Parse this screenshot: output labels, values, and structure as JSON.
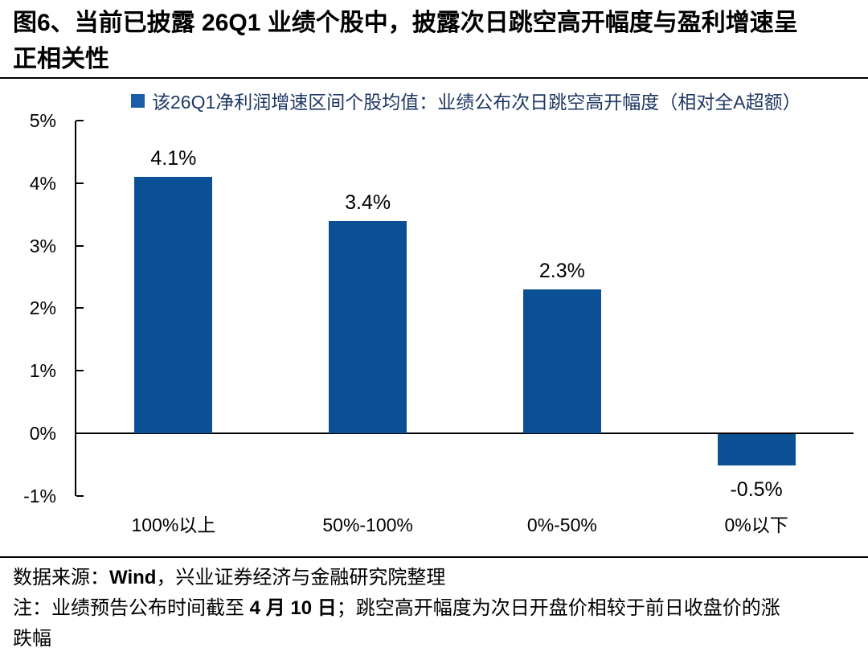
{
  "figure": {
    "title": "图6、当前已披露 26Q1 业绩个股中，披露次日跳空高开幅度与盈利增速呈正相关性"
  },
  "chart_data": {
    "type": "bar",
    "title": "该26Q1净利润增速区间个股均值：业绩公布次日跳空高开幅度（相对全A超额）",
    "categories": [
      "100%以上",
      "50%-100%",
      "0%-50%",
      "0%以下"
    ],
    "values": [
      4.1,
      3.4,
      2.3,
      -0.5
    ],
    "value_labels": [
      "4.1%",
      "3.4%",
      "2.3%",
      "-0.5%"
    ],
    "xlabel": "",
    "ylabel": "",
    "ylim": [
      -1,
      5
    ],
    "yticks": [
      5,
      4,
      3,
      2,
      1,
      0,
      -1
    ],
    "ytick_labels": [
      "5%",
      "4%",
      "3%",
      "2%",
      "1%",
      "0%",
      "-1%"
    ],
    "grid": false,
    "legend_position": "top",
    "bar_color": "#0B5094",
    "legend_swatch_color": "#1B5EA8"
  },
  "footer": {
    "source_prefix": "数据来源：",
    "source_wind": "Wind",
    "source_suffix": "，兴业证券经济与金融研究院整理",
    "note_prefix": "注：业绩预告公布时间截至 ",
    "note_date": "4 月 10 日",
    "note_suffix": "；跳空高开幅度为次日开盘价相较于前日收盘价的涨跌幅"
  }
}
